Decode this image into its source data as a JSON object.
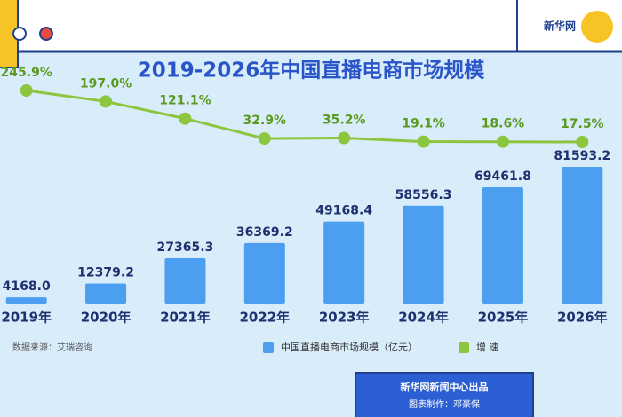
{
  "logo": "新华网",
  "chart_data": {
    "type": "bar",
    "title": "2019-2026年中国直播电商市场规模",
    "categories": [
      "2019年",
      "2020年",
      "2021年",
      "2022年",
      "2023年",
      "2024年",
      "2025年",
      "2026年"
    ],
    "series": [
      {
        "name": "中国直播电商市场规模（亿元）",
        "color": "#4c9ff0",
        "values": [
          4168.0,
          12379.2,
          27365.3,
          36369.2,
          49168.4,
          58556.3,
          69461.8,
          81593.2
        ],
        "value_labels": [
          "4168.0",
          "12379.2",
          "27365.3",
          "36369.2",
          "49168.4",
          "58556.3",
          "69461.8",
          "81593.2"
        ]
      },
      {
        "name": "增 速",
        "color": "#8cc63f",
        "type": "line",
        "axis": "y2",
        "values": [
          245.9,
          197.0,
          121.1,
          32.9,
          35.2,
          19.1,
          18.6,
          17.5
        ],
        "value_labels": [
          "245.9%",
          "197.0%",
          "121.1%",
          "32.9%",
          "35.2%",
          "19.1%",
          "18.6%",
          "17.5%"
        ]
      }
    ],
    "source": "数据来源：艾瑞咨询",
    "credit": "新华网新闻中心出品",
    "maker": "图表制作：邓豪保"
  }
}
